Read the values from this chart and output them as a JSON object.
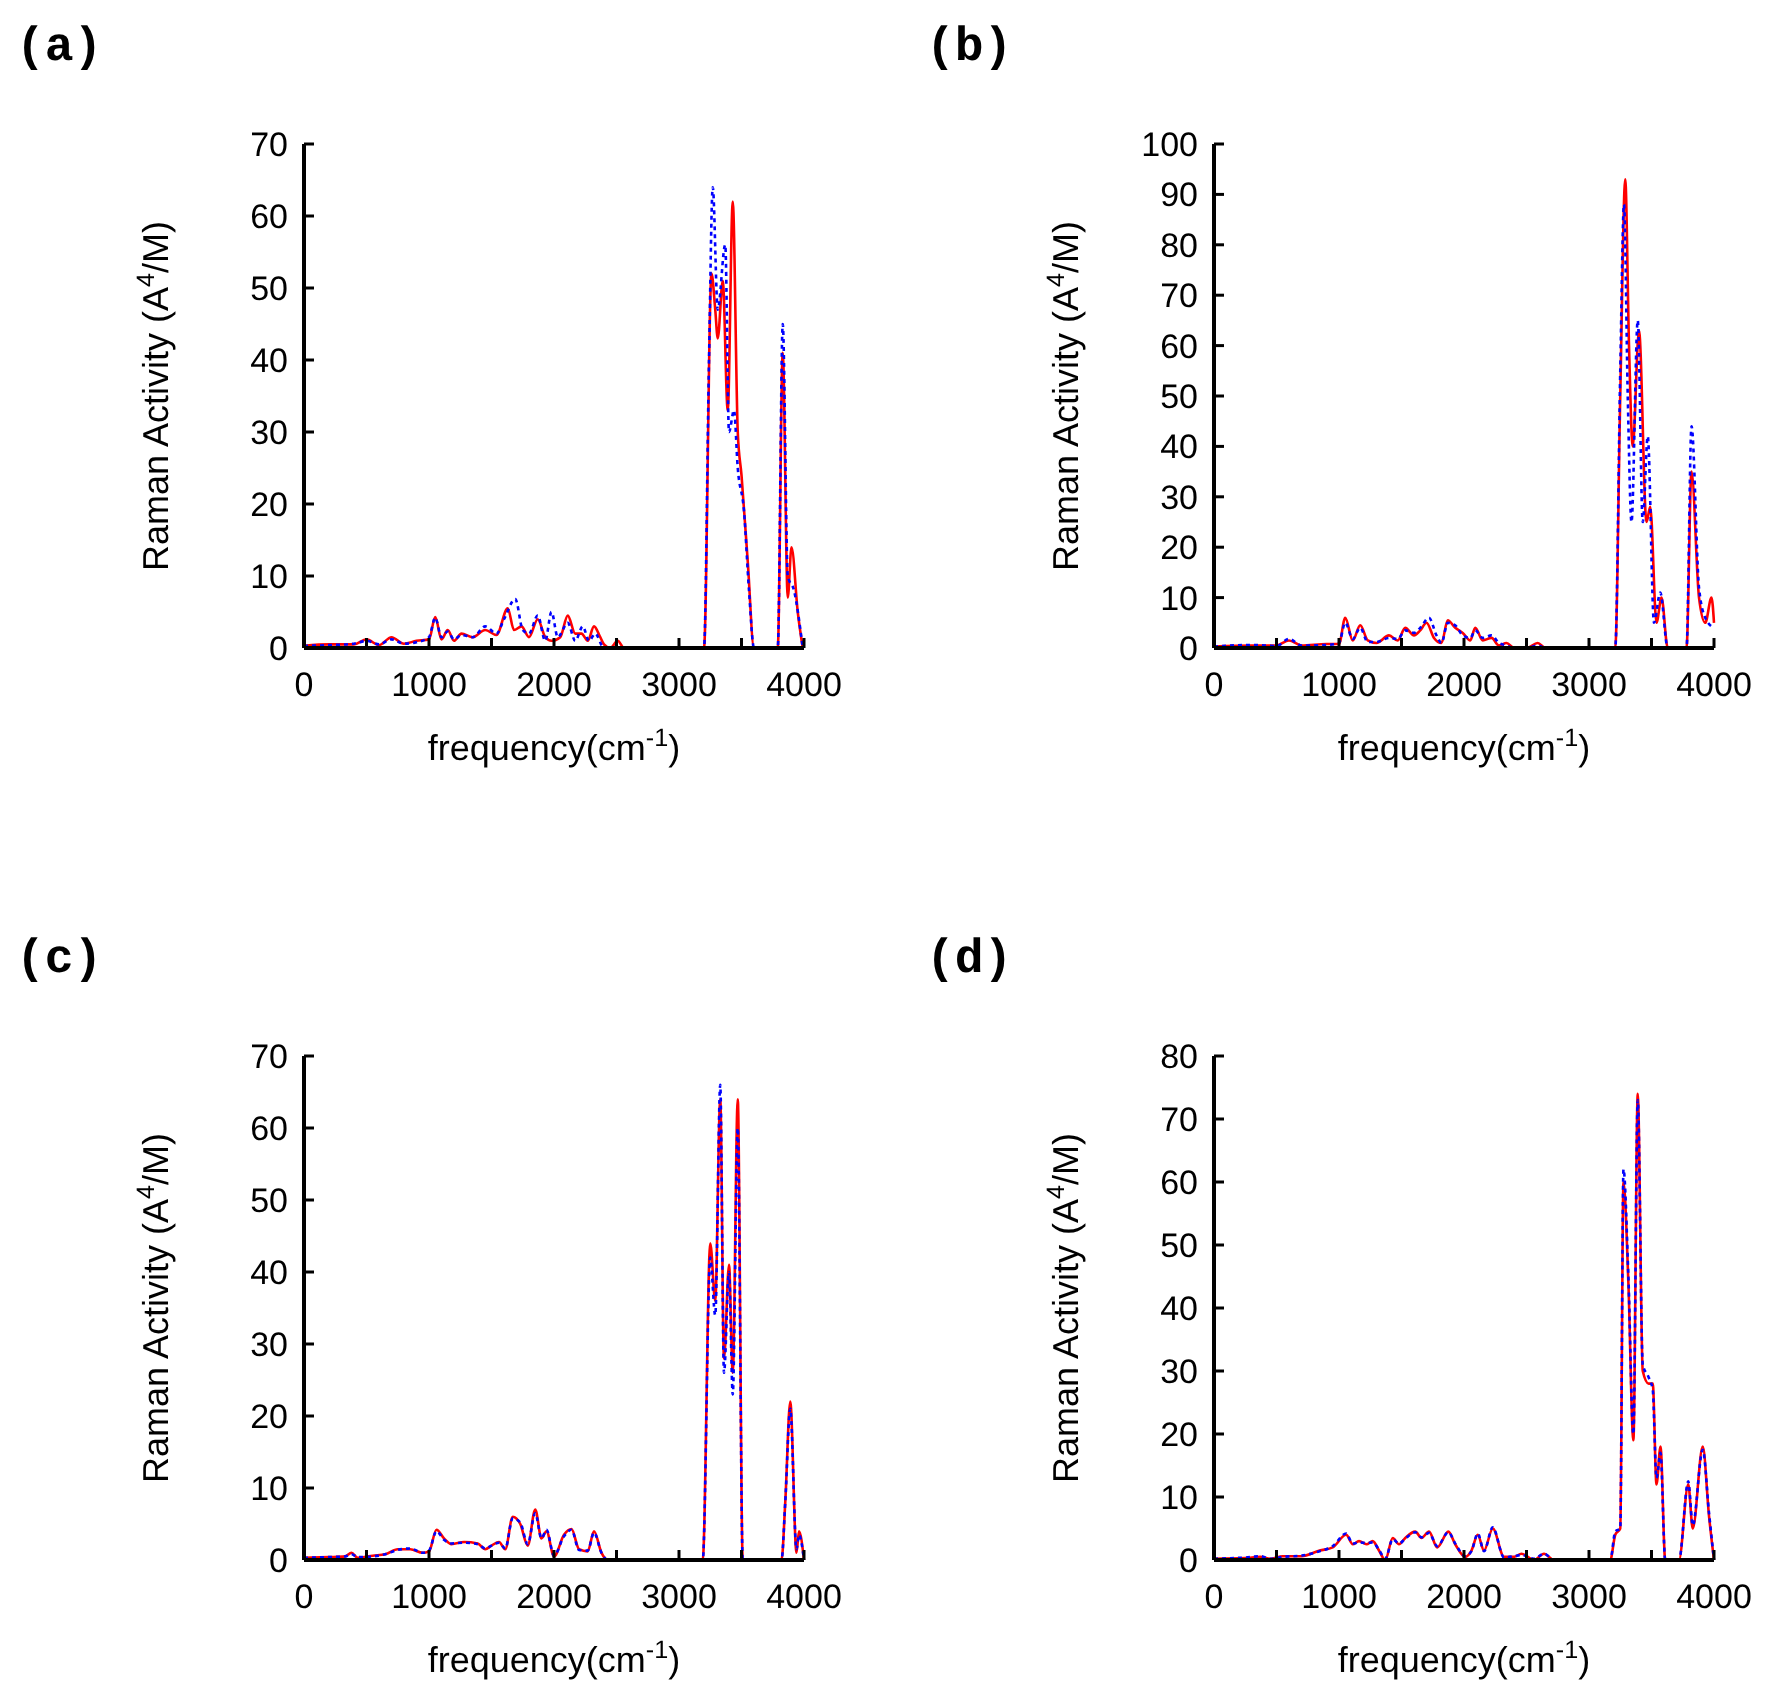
{
  "chart_data": [
    {
      "type": "line",
      "title": "(a)",
      "xlabel": "frequency(cm$^{-1}$)",
      "ylabel": "Raman Activity (A$^{4}$/M)",
      "xlim": [
        0,
        4000
      ],
      "ylim": [
        0,
        70
      ],
      "xticks": [
        0,
        {
          "value": 500,
          "label": null
        },
        1000,
        {
          "value": 1500,
          "label": null
        },
        2000,
        {
          "value": 2500,
          "label": null
        },
        3000,
        {
          "value": 3500,
          "label": null
        },
        4000
      ],
      "yticks": [
        0,
        10,
        20,
        30,
        40,
        50,
        60,
        70
      ],
      "grid": false,
      "marker": "none",
      "series": [
        {
          "color": "#ff0000",
          "line_style": "solid",
          "x": [
            0,
            200,
            400,
            500,
            600,
            700,
            800,
            900,
            1000,
            1050,
            1100,
            1150,
            1200,
            1260,
            1350,
            1450,
            1540,
            1630,
            1680,
            1740,
            1800,
            1870,
            1930,
            1980,
            2050,
            2110,
            2170,
            2220,
            2270,
            2320,
            2370,
            2400,
            2450,
            2510,
            2560,
            3200,
            3260,
            3290,
            3310,
            3350,
            3390,
            3430,
            3470,
            3500,
            3550,
            3600,
            3790,
            3830,
            3870,
            3900,
            3950,
            3990
          ],
          "values": [
            0.3,
            0.5,
            0.5,
            1.2,
            0.4,
            1.5,
            0.6,
            1,
            1.2,
            4.3,
            1.2,
            2.5,
            1,
            2,
            1.5,
            2.5,
            1.8,
            5.5,
            2.5,
            3,
            1.5,
            4,
            1.5,
            1,
            1.5,
            4.5,
            2,
            2,
            1,
            3,
            1.5,
            0.5,
            0,
            1,
            0,
            0,
            52,
            47,
            43,
            51,
            33,
            62,
            30,
            24,
            12,
            0,
            0,
            41,
            7,
            14,
            5,
            0
          ]
        },
        {
          "color": "#0000ff",
          "line_style": "dotted",
          "x": [
            0,
            200,
            400,
            500,
            600,
            700,
            800,
            900,
            1000,
            1050,
            1100,
            1150,
            1200,
            1260,
            1350,
            1450,
            1540,
            1600,
            1690,
            1750,
            1800,
            1870,
            1930,
            1980,
            2030,
            2110,
            2170,
            2230,
            2280,
            2330,
            2400,
            3200,
            3240,
            3270,
            3310,
            3370,
            3400,
            3440,
            3470,
            3520,
            3560,
            3600,
            3790,
            3830,
            3870,
            3920,
            3990
          ],
          "values": [
            0.3,
            0.4,
            0.6,
            1,
            0.5,
            1.2,
            0.6,
            0.8,
            1.5,
            4.2,
            1.5,
            2.3,
            1.2,
            1.8,
            1.5,
            3,
            2,
            4,
            6.8,
            2.5,
            2,
            4.5,
            1,
            5,
            1.5,
            3.5,
            1,
            3,
            1,
            2,
            0,
            0,
            40,
            64,
            47,
            56,
            30,
            33,
            25,
            19,
            8,
            0,
            0,
            45,
            10,
            8,
            0
          ]
        }
      ]
    },
    {
      "type": "line",
      "title": "(b)",
      "xlabel": "frequency(cm$^{-1}$)",
      "ylabel": "Raman Activity (A$^{4}$/M)",
      "xlim": [
        0,
        4000
      ],
      "ylim": [
        0,
        100
      ],
      "xticks": [
        0,
        {
          "value": 500,
          "label": null
        },
        1000,
        {
          "value": 1500,
          "label": null
        },
        2000,
        {
          "value": 2500,
          "label": null
        },
        3000,
        {
          "value": 3500,
          "label": null
        },
        4000
      ],
      "yticks": [
        0,
        10,
        20,
        30,
        40,
        50,
        60,
        70,
        80,
        90,
        100
      ],
      "grid": false,
      "marker": "none",
      "series": [
        {
          "color": "#ff0000",
          "line_style": "solid",
          "x": [
            0,
            300,
            500,
            600,
            700,
            900,
            1000,
            1050,
            1110,
            1170,
            1230,
            1300,
            1400,
            1470,
            1530,
            1600,
            1650,
            1700,
            1760,
            1820,
            1870,
            1930,
            1990,
            2050,
            2090,
            2150,
            2220,
            2280,
            2340,
            2400,
            2500,
            2590,
            2650,
            3210,
            3250,
            3290,
            3320,
            3350,
            3400,
            3460,
            3490,
            3540,
            3580,
            3630,
            3780,
            3820,
            3880,
            3930,
            3980,
            4000
          ],
          "values": [
            0.3,
            0.5,
            0.5,
            1.5,
            0.5,
            0.8,
            0.8,
            6,
            1.5,
            4.5,
            1.5,
            1,
            2.5,
            1.5,
            4,
            2.5,
            3.5,
            5,
            2,
            1,
            5.5,
            4,
            3,
            1.5,
            4,
            1.5,
            2,
            0.5,
            1,
            0,
            0,
            1,
            0,
            0,
            50,
            93,
            60,
            40,
            63,
            25,
            28,
            5,
            10,
            0,
            0,
            35,
            10,
            5,
            10,
            5
          ]
        },
        {
          "color": "#0000ff",
          "line_style": "dotted",
          "x": [
            0,
            300,
            500,
            600,
            700,
            900,
            1000,
            1050,
            1110,
            1170,
            1230,
            1300,
            1400,
            1470,
            1530,
            1600,
            1650,
            1720,
            1780,
            1820,
            1870,
            1930,
            1990,
            2050,
            2090,
            2150,
            2220,
            2280,
            2340,
            2400,
            2500,
            2590,
            2650,
            3210,
            3250,
            3280,
            3310,
            3340,
            3390,
            3430,
            3470,
            3520,
            3570,
            3630,
            3780,
            3820,
            3880,
            3930,
            4000
          ],
          "values": [
            0.3,
            0.6,
            0.4,
            1.8,
            0.5,
            0.6,
            1,
            5,
            1.8,
            4,
            1.2,
            1.2,
            2,
            1.8,
            3.5,
            3,
            4,
            6,
            2.5,
            1,
            5,
            4.5,
            2.5,
            2,
            3.5,
            2,
            2.5,
            1,
            0.5,
            0,
            0,
            0.5,
            0,
            0,
            55,
            88,
            50,
            25,
            65,
            25,
            42,
            5,
            11,
            0,
            0,
            44,
            12,
            6,
            4
          ]
        }
      ]
    },
    {
      "type": "line",
      "title": "(c)",
      "xlabel": "frequency(cm$^{-1}$)",
      "ylabel": "Raman Activity (A$^{4}$/M)",
      "xlim": [
        0,
        4000
      ],
      "ylim": [
        0,
        70
      ],
      "xticks": [
        0,
        {
          "value": 500,
          "label": null
        },
        1000,
        {
          "value": 1500,
          "label": null
        },
        2000,
        {
          "value": 2500,
          "label": null
        },
        3000,
        {
          "value": 3500,
          "label": null
        },
        4000
      ],
      "yticks": [
        0,
        10,
        20,
        30,
        40,
        50,
        60,
        70
      ],
      "grid": false,
      "marker": "none",
      "series": [
        {
          "color": "#ff0000",
          "line_style": "solid",
          "x": [
            0,
            200,
            330,
            380,
            430,
            550,
            650,
            750,
            850,
            950,
            1000,
            1060,
            1120,
            1180,
            1280,
            1390,
            1450,
            1500,
            1560,
            1610,
            1670,
            1730,
            1790,
            1850,
            1900,
            1940,
            2000,
            2080,
            2140,
            2200,
            2270,
            2320,
            2380,
            2430,
            3190,
            3250,
            3290,
            3330,
            3360,
            3400,
            3430,
            3470,
            3510,
            3820,
            3850,
            3890,
            3940,
            3960,
            4000
          ],
          "values": [
            0.3,
            0.4,
            0.5,
            1,
            0.3,
            0.6,
            0.8,
            1.5,
            1.5,
            1,
            1.2,
            4.2,
            3,
            2.2,
            2.5,
            2.3,
            1.5,
            2,
            2.5,
            1.5,
            6,
            5,
            2,
            7,
            3,
            4,
            0.5,
            3.5,
            4.3,
            1.5,
            1.2,
            4,
            1,
            0,
            0,
            44,
            36,
            64,
            28,
            41,
            26,
            64,
            0,
            0,
            8,
            22,
            1,
            4,
            0
          ]
        },
        {
          "color": "#0000ff",
          "line_style": "dotted",
          "x": [
            0,
            200,
            330,
            380,
            430,
            550,
            650,
            750,
            850,
            950,
            1000,
            1060,
            1120,
            1180,
            1280,
            1390,
            1450,
            1500,
            1560,
            1610,
            1670,
            1730,
            1790,
            1850,
            1900,
            1940,
            2000,
            2080,
            2140,
            2200,
            2270,
            2320,
            2380,
            2430,
            3190,
            3250,
            3290,
            3330,
            3360,
            3400,
            3430,
            3470,
            3510,
            3820,
            3850,
            3890,
            3940,
            3960,
            4000
          ],
          "values": [
            0.3,
            0.4,
            0.5,
            0.8,
            0.4,
            0.5,
            0.8,
            1.4,
            1.6,
            1,
            1.3,
            4,
            2.8,
            2.3,
            2.4,
            2.2,
            1.6,
            2,
            2.4,
            1.6,
            5.8,
            5.2,
            2.2,
            6.5,
            3,
            4.2,
            0.6,
            3.3,
            4.2,
            1.4,
            1.3,
            3.8,
            1,
            0,
            0,
            42,
            34,
            66,
            26,
            40,
            23,
            60,
            0,
            0,
            8,
            21,
            1.5,
            3.5,
            0
          ]
        }
      ]
    },
    {
      "type": "line",
      "title": "(d)",
      "xlabel": "frequency(cm$^{-1}$)",
      "ylabel": "Raman Activity (A$^{4}$/M)",
      "xlim": [
        0,
        4000
      ],
      "ylim": [
        0,
        80
      ],
      "xticks": [
        0,
        {
          "value": 500,
          "label": null
        },
        1000,
        {
          "value": 1500,
          "label": null
        },
        2000,
        {
          "value": 2500,
          "label": null
        },
        3000,
        {
          "value": 3500,
          "label": null
        },
        4000
      ],
      "yticks": [
        0,
        10,
        20,
        30,
        40,
        50,
        60,
        70,
        80
      ],
      "grid": false,
      "marker": "none",
      "series": [
        {
          "color": "#ff0000",
          "line_style": "solid",
          "x": [
            0,
            250,
            370,
            450,
            550,
            700,
            845,
            950,
            1057,
            1110,
            1160,
            1220,
            1270,
            1320,
            1370,
            1430,
            1480,
            1530,
            1610,
            1660,
            1720,
            1786,
            1875,
            1930,
            2010,
            2060,
            2110,
            2160,
            2230,
            2320,
            2400,
            2460,
            2560,
            2640,
            2720,
            3170,
            3210,
            3250,
            3276,
            3315,
            3355,
            3390,
            3430,
            3477,
            3510,
            3540,
            3572,
            3610,
            3720,
            3794,
            3830,
            3910,
            3960,
            4000
          ],
          "values": [
            0.2,
            0.3,
            0.5,
            0.2,
            0.6,
            0.6,
            1.5,
            2,
            4,
            2.5,
            3,
            2.5,
            3,
            1.5,
            0,
            3.5,
            2.5,
            3.5,
            4.5,
            3.5,
            4.5,
            2,
            4.5,
            2.5,
            0.5,
            1.5,
            4,
            1.5,
            5,
            0.5,
            0.5,
            1,
            0,
            1,
            0,
            0,
            4,
            5,
            60,
            44,
            19,
            74,
            30,
            28,
            28,
            12,
            18,
            0,
            0,
            12,
            5,
            18,
            7,
            0
          ]
        },
        {
          "color": "#0000ff",
          "line_style": "dotted",
          "x": [
            0,
            250,
            370,
            450,
            550,
            700,
            845,
            950,
            1057,
            1110,
            1160,
            1220,
            1270,
            1320,
            1370,
            1430,
            1480,
            1530,
            1610,
            1660,
            1720,
            1786,
            1875,
            1930,
            2010,
            2060,
            2110,
            2160,
            2230,
            2320,
            2400,
            2460,
            2560,
            2640,
            2720,
            3170,
            3210,
            3250,
            3276,
            3315,
            3355,
            3390,
            3430,
            3477,
            3510,
            3540,
            3572,
            3610,
            3720,
            3794,
            3830,
            3910,
            3960,
            4000
          ],
          "values": [
            0.2,
            0.4,
            0.6,
            0.2,
            0.5,
            0.7,
            1.4,
            2.2,
            4.2,
            2.6,
            2.8,
            2.7,
            2.8,
            1.6,
            0.2,
            3.3,
            2.6,
            3.4,
            4.4,
            3.6,
            4.3,
            2.2,
            4.4,
            2.6,
            0.6,
            1.4,
            4.2,
            1.4,
            5.2,
            0.4,
            0.6,
            0.8,
            0.2,
            1,
            0,
            0,
            4.5,
            5,
            62,
            45,
            20,
            73,
            31,
            29,
            27,
            13,
            17,
            0,
            0,
            12.5,
            5.5,
            17.5,
            7.5,
            0
          ]
        }
      ]
    }
  ]
}
